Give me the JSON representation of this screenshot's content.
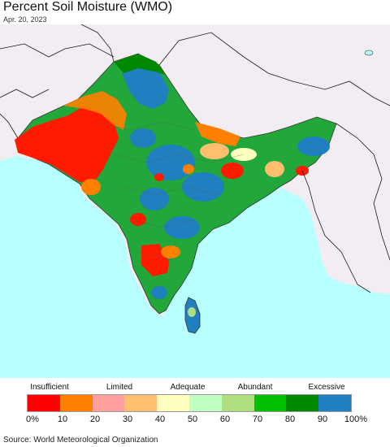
{
  "header": {
    "title": "Percent Soil Moisture (WMO)",
    "date": "Apr. 20, 2023"
  },
  "map": {
    "background_color": "#f1edf2",
    "ocean_color": "#b8ffff",
    "boundary_color": "#1a1a1a"
  },
  "legend": {
    "categories": [
      "Insufficient",
      "Limited",
      "Adequate",
      "Abundant",
      "Excessive"
    ],
    "ticks": [
      "0%",
      "10",
      "20",
      "30",
      "40",
      "50",
      "60",
      "70",
      "80",
      "90",
      "100%"
    ],
    "colors": [
      "#ff0000",
      "#ff7f00",
      "#ff9f9f",
      "#ffbf6f",
      "#ffffbf",
      "#bfffbf",
      "#afdf7f",
      "#00c000",
      "#008800",
      "#1f7fbf"
    ]
  },
  "footer": {
    "source": "Source: World Meteorological Organization"
  }
}
